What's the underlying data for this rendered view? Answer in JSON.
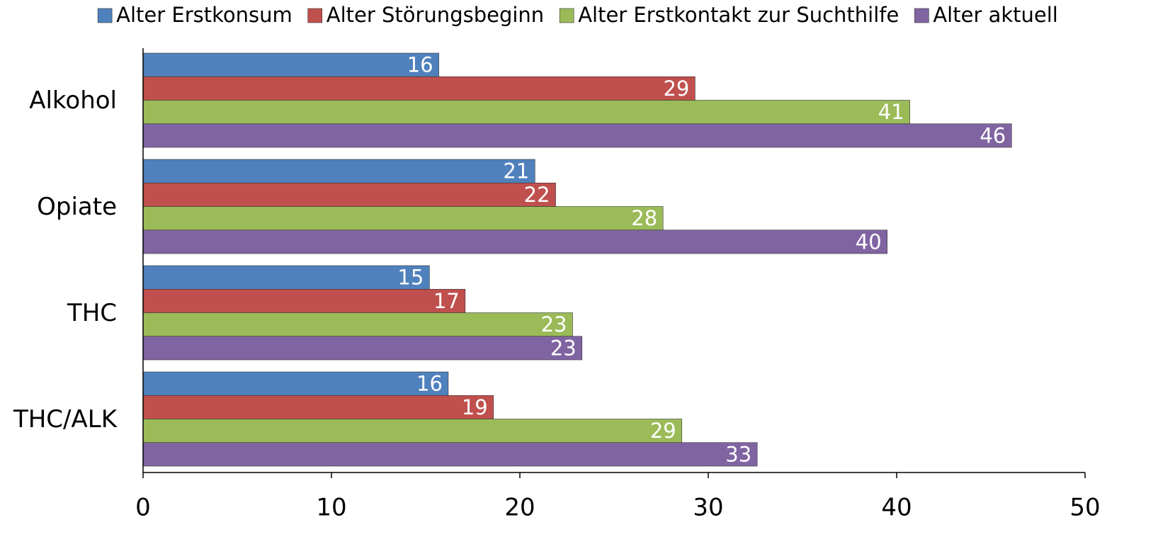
{
  "chart_data": {
    "type": "bar",
    "orientation": "horizontal",
    "categories": [
      "Alkohol",
      "Opiate",
      "THC",
      "THC/ALK"
    ],
    "series": [
      {
        "name": "Alter Erstkonsum",
        "color": "#4f81bd",
        "values": [
          15.7,
          20.8,
          15.2,
          16.2
        ],
        "value_labels": [
          "16",
          "21",
          "15",
          "16"
        ]
      },
      {
        "name": "Alter Störungsbeginn",
        "color": "#c0504d",
        "values": [
          29.3,
          21.9,
          17.1,
          18.6
        ],
        "value_labels": [
          "29",
          "22",
          "17",
          "19"
        ]
      },
      {
        "name": "Alter Erstkontakt zur Suchthilfe",
        "color": "#9bbb59",
        "values": [
          40.7,
          27.6,
          22.8,
          28.6
        ],
        "value_labels": [
          "41",
          "28",
          "23",
          "29"
        ]
      },
      {
        "name": "Alter aktuell",
        "color": "#8064a2",
        "values": [
          46.1,
          39.5,
          23.3,
          32.6
        ],
        "value_labels": [
          "46",
          "40",
          "23",
          "33"
        ]
      }
    ],
    "xlim": [
      0,
      50
    ],
    "xticks": [
      0,
      10,
      20,
      30,
      40,
      50
    ],
    "legend": "top"
  }
}
